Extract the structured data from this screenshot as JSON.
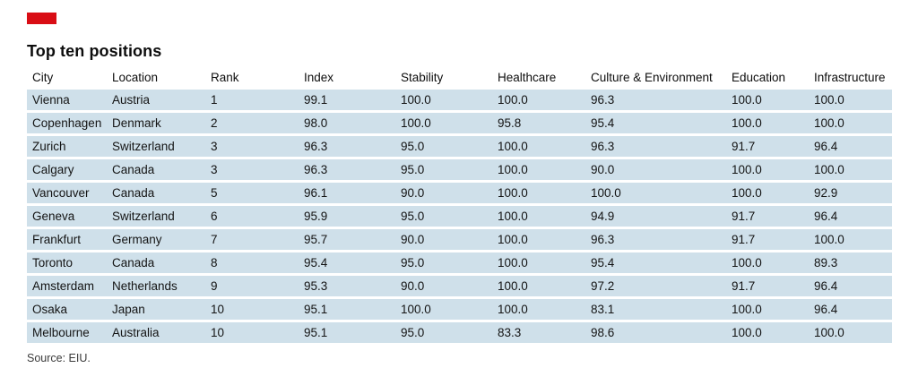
{
  "brand": {
    "red_tag_color": "#d90d15"
  },
  "header": {
    "title": "Top ten positions"
  },
  "source": "Source: EIU.",
  "colors": {
    "row_background": "#cfe0ea",
    "accent_red": "#d90d15",
    "text": "#141414"
  },
  "table": {
    "columns": [
      "City",
      "Location",
      "Rank",
      "Index",
      "Stability",
      "Healthcare",
      "Culture & Environment",
      "Education",
      "Infrastructure"
    ],
    "rows": [
      [
        "Vienna",
        "Austria",
        "1",
        "99.1",
        "100.0",
        "100.0",
        "96.3",
        "100.0",
        "100.0"
      ],
      [
        "Copenhagen",
        "Denmark",
        "2",
        "98.0",
        "100.0",
        "95.8",
        "95.4",
        "100.0",
        "100.0"
      ],
      [
        "Zurich",
        "Switzerland",
        "3",
        "96.3",
        "95.0",
        "100.0",
        "96.3",
        "91.7",
        "96.4"
      ],
      [
        "Calgary",
        "Canada",
        "3",
        "96.3",
        "95.0",
        "100.0",
        "90.0",
        "100.0",
        "100.0"
      ],
      [
        "Vancouver",
        "Canada",
        "5",
        "96.1",
        "90.0",
        "100.0",
        "100.0",
        "100.0",
        "92.9"
      ],
      [
        "Geneva",
        "Switzerland",
        "6",
        "95.9",
        "95.0",
        "100.0",
        "94.9",
        "91.7",
        "96.4"
      ],
      [
        "Frankfurt",
        "Germany",
        "7",
        "95.7",
        "90.0",
        "100.0",
        "96.3",
        "91.7",
        "100.0"
      ],
      [
        "Toronto",
        "Canada",
        "8",
        "95.4",
        "95.0",
        "100.0",
        "95.4",
        "100.0",
        "89.3"
      ],
      [
        "Amsterdam",
        "Netherlands",
        "9",
        "95.3",
        "90.0",
        "100.0",
        "97.2",
        "91.7",
        "96.4"
      ],
      [
        "Osaka",
        "Japan",
        "10",
        "95.1",
        "100.0",
        "100.0",
        "83.1",
        "100.0",
        "96.4"
      ],
      [
        "Melbourne",
        "Australia",
        "10",
        "95.1",
        "95.0",
        "83.3",
        "98.6",
        "100.0",
        "100.0"
      ]
    ]
  },
  "chart_data": {
    "type": "table",
    "title": "Top ten positions",
    "columns": [
      "City",
      "Location",
      "Rank",
      "Index",
      "Stability",
      "Healthcare",
      "Culture & Environment",
      "Education",
      "Infrastructure"
    ],
    "rows": [
      {
        "city": "Vienna",
        "location": "Austria",
        "rank": 1,
        "index": 99.1,
        "stability": 100.0,
        "healthcare": 100.0,
        "culture_environment": 96.3,
        "education": 100.0,
        "infrastructure": 100.0
      },
      {
        "city": "Copenhagen",
        "location": "Denmark",
        "rank": 2,
        "index": 98.0,
        "stability": 100.0,
        "healthcare": 95.8,
        "culture_environment": 95.4,
        "education": 100.0,
        "infrastructure": 100.0
      },
      {
        "city": "Zurich",
        "location": "Switzerland",
        "rank": 3,
        "index": 96.3,
        "stability": 95.0,
        "healthcare": 100.0,
        "culture_environment": 96.3,
        "education": 91.7,
        "infrastructure": 96.4
      },
      {
        "city": "Calgary",
        "location": "Canada",
        "rank": 3,
        "index": 96.3,
        "stability": 95.0,
        "healthcare": 100.0,
        "culture_environment": 90.0,
        "education": 100.0,
        "infrastructure": 100.0
      },
      {
        "city": "Vancouver",
        "location": "Canada",
        "rank": 5,
        "index": 96.1,
        "stability": 90.0,
        "healthcare": 100.0,
        "culture_environment": 100.0,
        "education": 100.0,
        "infrastructure": 92.9
      },
      {
        "city": "Geneva",
        "location": "Switzerland",
        "rank": 6,
        "index": 95.9,
        "stability": 95.0,
        "healthcare": 100.0,
        "culture_environment": 94.9,
        "education": 91.7,
        "infrastructure": 96.4
      },
      {
        "city": "Frankfurt",
        "location": "Germany",
        "rank": 7,
        "index": 95.7,
        "stability": 90.0,
        "healthcare": 100.0,
        "culture_environment": 96.3,
        "education": 91.7,
        "infrastructure": 100.0
      },
      {
        "city": "Toronto",
        "location": "Canada",
        "rank": 8,
        "index": 95.4,
        "stability": 95.0,
        "healthcare": 100.0,
        "culture_environment": 95.4,
        "education": 100.0,
        "infrastructure": 89.3
      },
      {
        "city": "Amsterdam",
        "location": "Netherlands",
        "rank": 9,
        "index": 95.3,
        "stability": 90.0,
        "healthcare": 100.0,
        "culture_environment": 97.2,
        "education": 91.7,
        "infrastructure": 96.4
      },
      {
        "city": "Osaka",
        "location": "Japan",
        "rank": 10,
        "index": 95.1,
        "stability": 100.0,
        "healthcare": 100.0,
        "culture_environment": 83.1,
        "education": 100.0,
        "infrastructure": 96.4
      },
      {
        "city": "Melbourne",
        "location": "Australia",
        "rank": 10,
        "index": 95.1,
        "stability": 95.0,
        "healthcare": 83.3,
        "culture_environment": 98.6,
        "education": 100.0,
        "infrastructure": 100.0
      }
    ],
    "source": "Source: EIU.",
    "notes": "Table figure with light-blue row bands separated by white rules; red brand tag top-left."
  }
}
